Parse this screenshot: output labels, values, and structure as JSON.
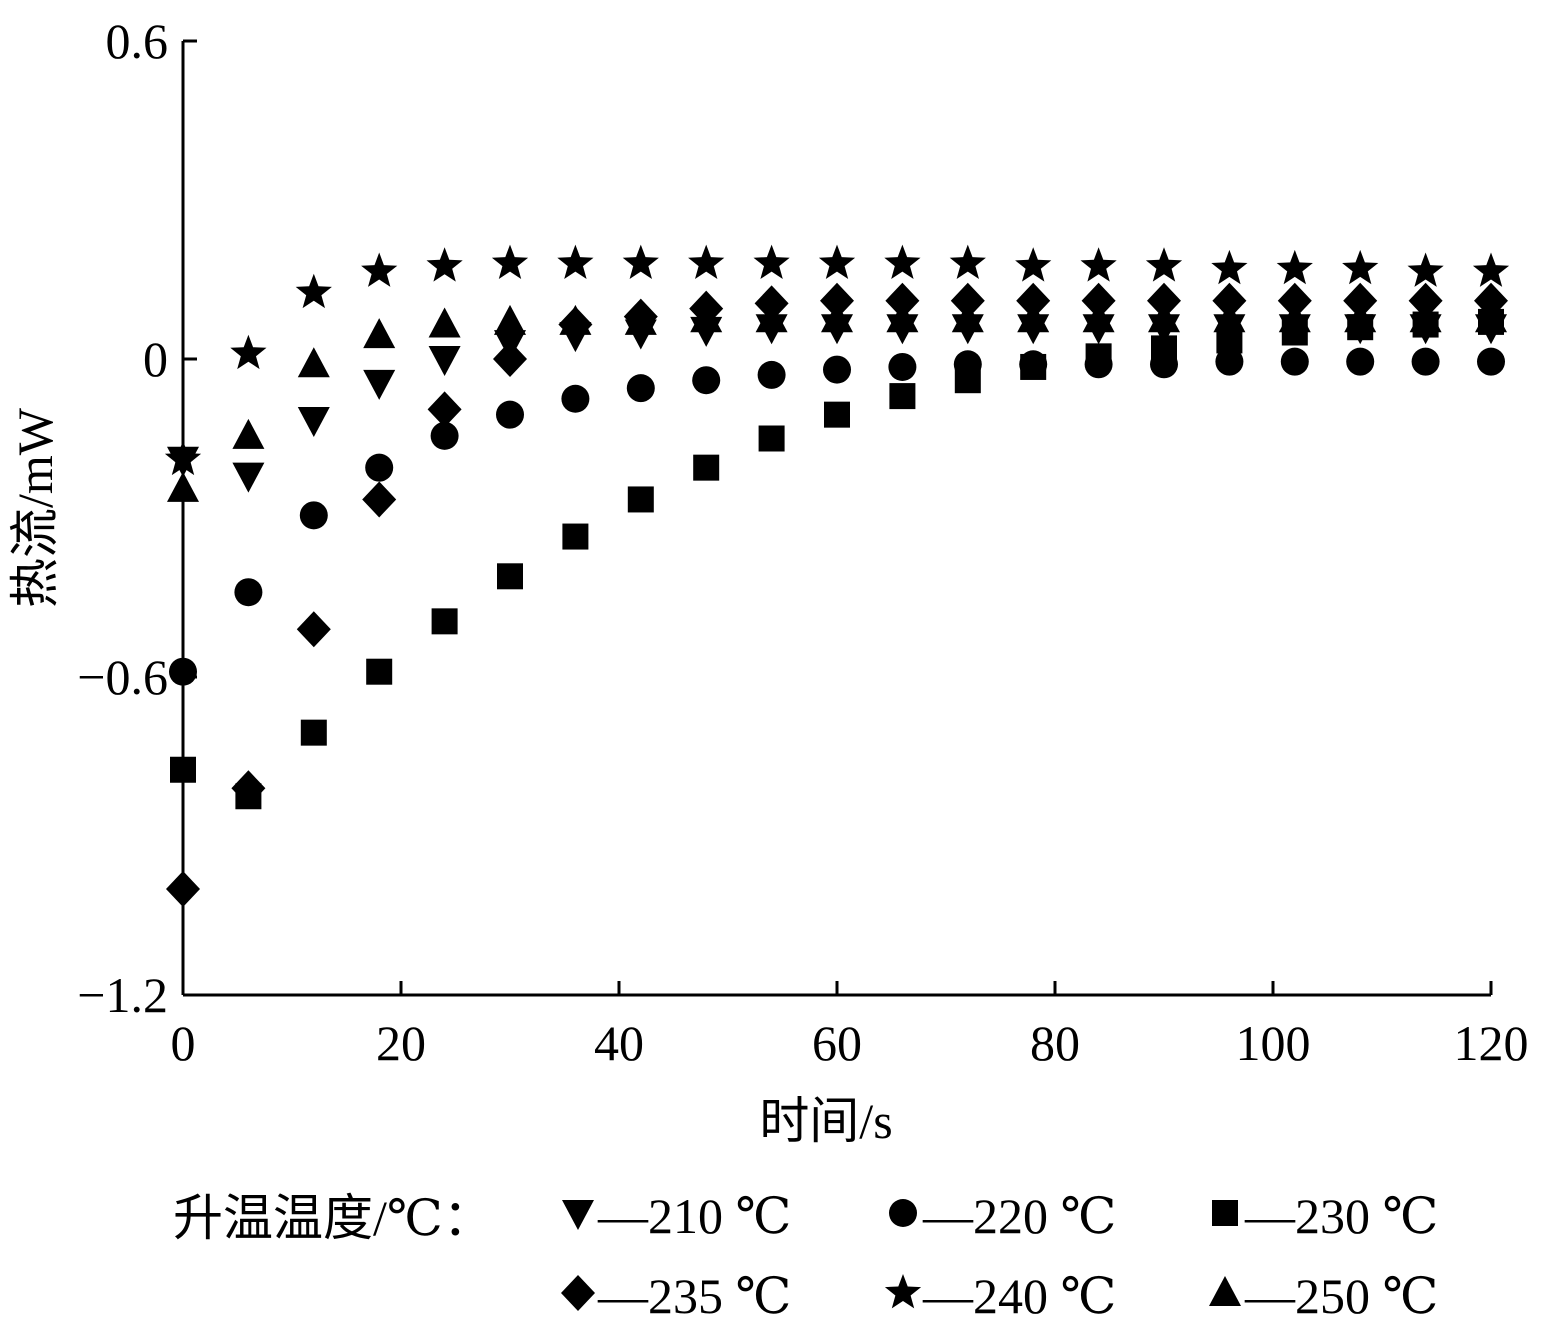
{
  "chart_data": {
    "type": "scatter",
    "xlabel": "时间/s",
    "ylabel": "热流/mW",
    "xlim": [
      0,
      120
    ],
    "ylim": [
      -1.2,
      0.6
    ],
    "xticks": [
      "0",
      "20",
      "40",
      "60",
      "80",
      "100",
      "120"
    ],
    "yticks": [
      "0.6",
      "0",
      "−0.6",
      "−1.2"
    ],
    "legend": {
      "title": "升温温度/℃：",
      "placement": "bottom"
    },
    "x": [
      0,
      6,
      12,
      18,
      24,
      30,
      36,
      42,
      48,
      54,
      60,
      66,
      72,
      78,
      84,
      90,
      96,
      102,
      108,
      114,
      120
    ],
    "series": [
      {
        "name": "—210 ℃",
        "marker": "triangle-down",
        "values": [
          -0.19,
          -0.22,
          -0.115,
          -0.045,
          0.0,
          0.03,
          0.045,
          0.05,
          0.055,
          0.06,
          0.06,
          0.06,
          0.06,
          0.06,
          0.06,
          0.06,
          0.06,
          0.06,
          0.06,
          0.06,
          0.06
        ]
      },
      {
        "name": "—220 ℃",
        "marker": "circle",
        "values": [
          -0.59,
          -0.44,
          -0.295,
          -0.205,
          -0.145,
          -0.105,
          -0.075,
          -0.055,
          -0.04,
          -0.03,
          -0.02,
          -0.015,
          -0.01,
          -0.01,
          -0.01,
          -0.01,
          -0.005,
          -0.005,
          -0.005,
          -0.005,
          -0.005
        ]
      },
      {
        "name": "—230 ℃",
        "marker": "square",
        "values": [
          -0.775,
          -0.825,
          -0.705,
          -0.59,
          -0.495,
          -0.41,
          -0.335,
          -0.265,
          -0.205,
          -0.15,
          -0.105,
          -0.07,
          -0.04,
          -0.015,
          0.005,
          0.02,
          0.035,
          0.05,
          0.06,
          0.065,
          0.07
        ]
      },
      {
        "name": "—235 ℃",
        "marker": "diamond",
        "values": [
          -1.0,
          -0.81,
          -0.51,
          -0.265,
          -0.095,
          0.0,
          0.065,
          0.08,
          0.095,
          0.105,
          0.11,
          0.11,
          0.11,
          0.11,
          0.11,
          0.11,
          0.11,
          0.11,
          0.11,
          0.11,
          0.11
        ]
      },
      {
        "name": "—240 ℃",
        "marker": "star",
        "values": [
          -0.19,
          0.01,
          0.125,
          0.165,
          0.175,
          0.18,
          0.18,
          0.18,
          0.18,
          0.18,
          0.18,
          0.18,
          0.18,
          0.175,
          0.175,
          0.175,
          0.17,
          0.17,
          0.17,
          0.165,
          0.165
        ]
      },
      {
        "name": "—250 ℃",
        "marker": "triangle-up",
        "values": [
          -0.245,
          -0.145,
          -0.01,
          0.045,
          0.065,
          0.07,
          0.07,
          0.07,
          0.075,
          0.075,
          0.075,
          0.075,
          0.075,
          0.075,
          0.075,
          0.075,
          0.075,
          0.075,
          0.075,
          0.075,
          0.075
        ]
      }
    ]
  }
}
